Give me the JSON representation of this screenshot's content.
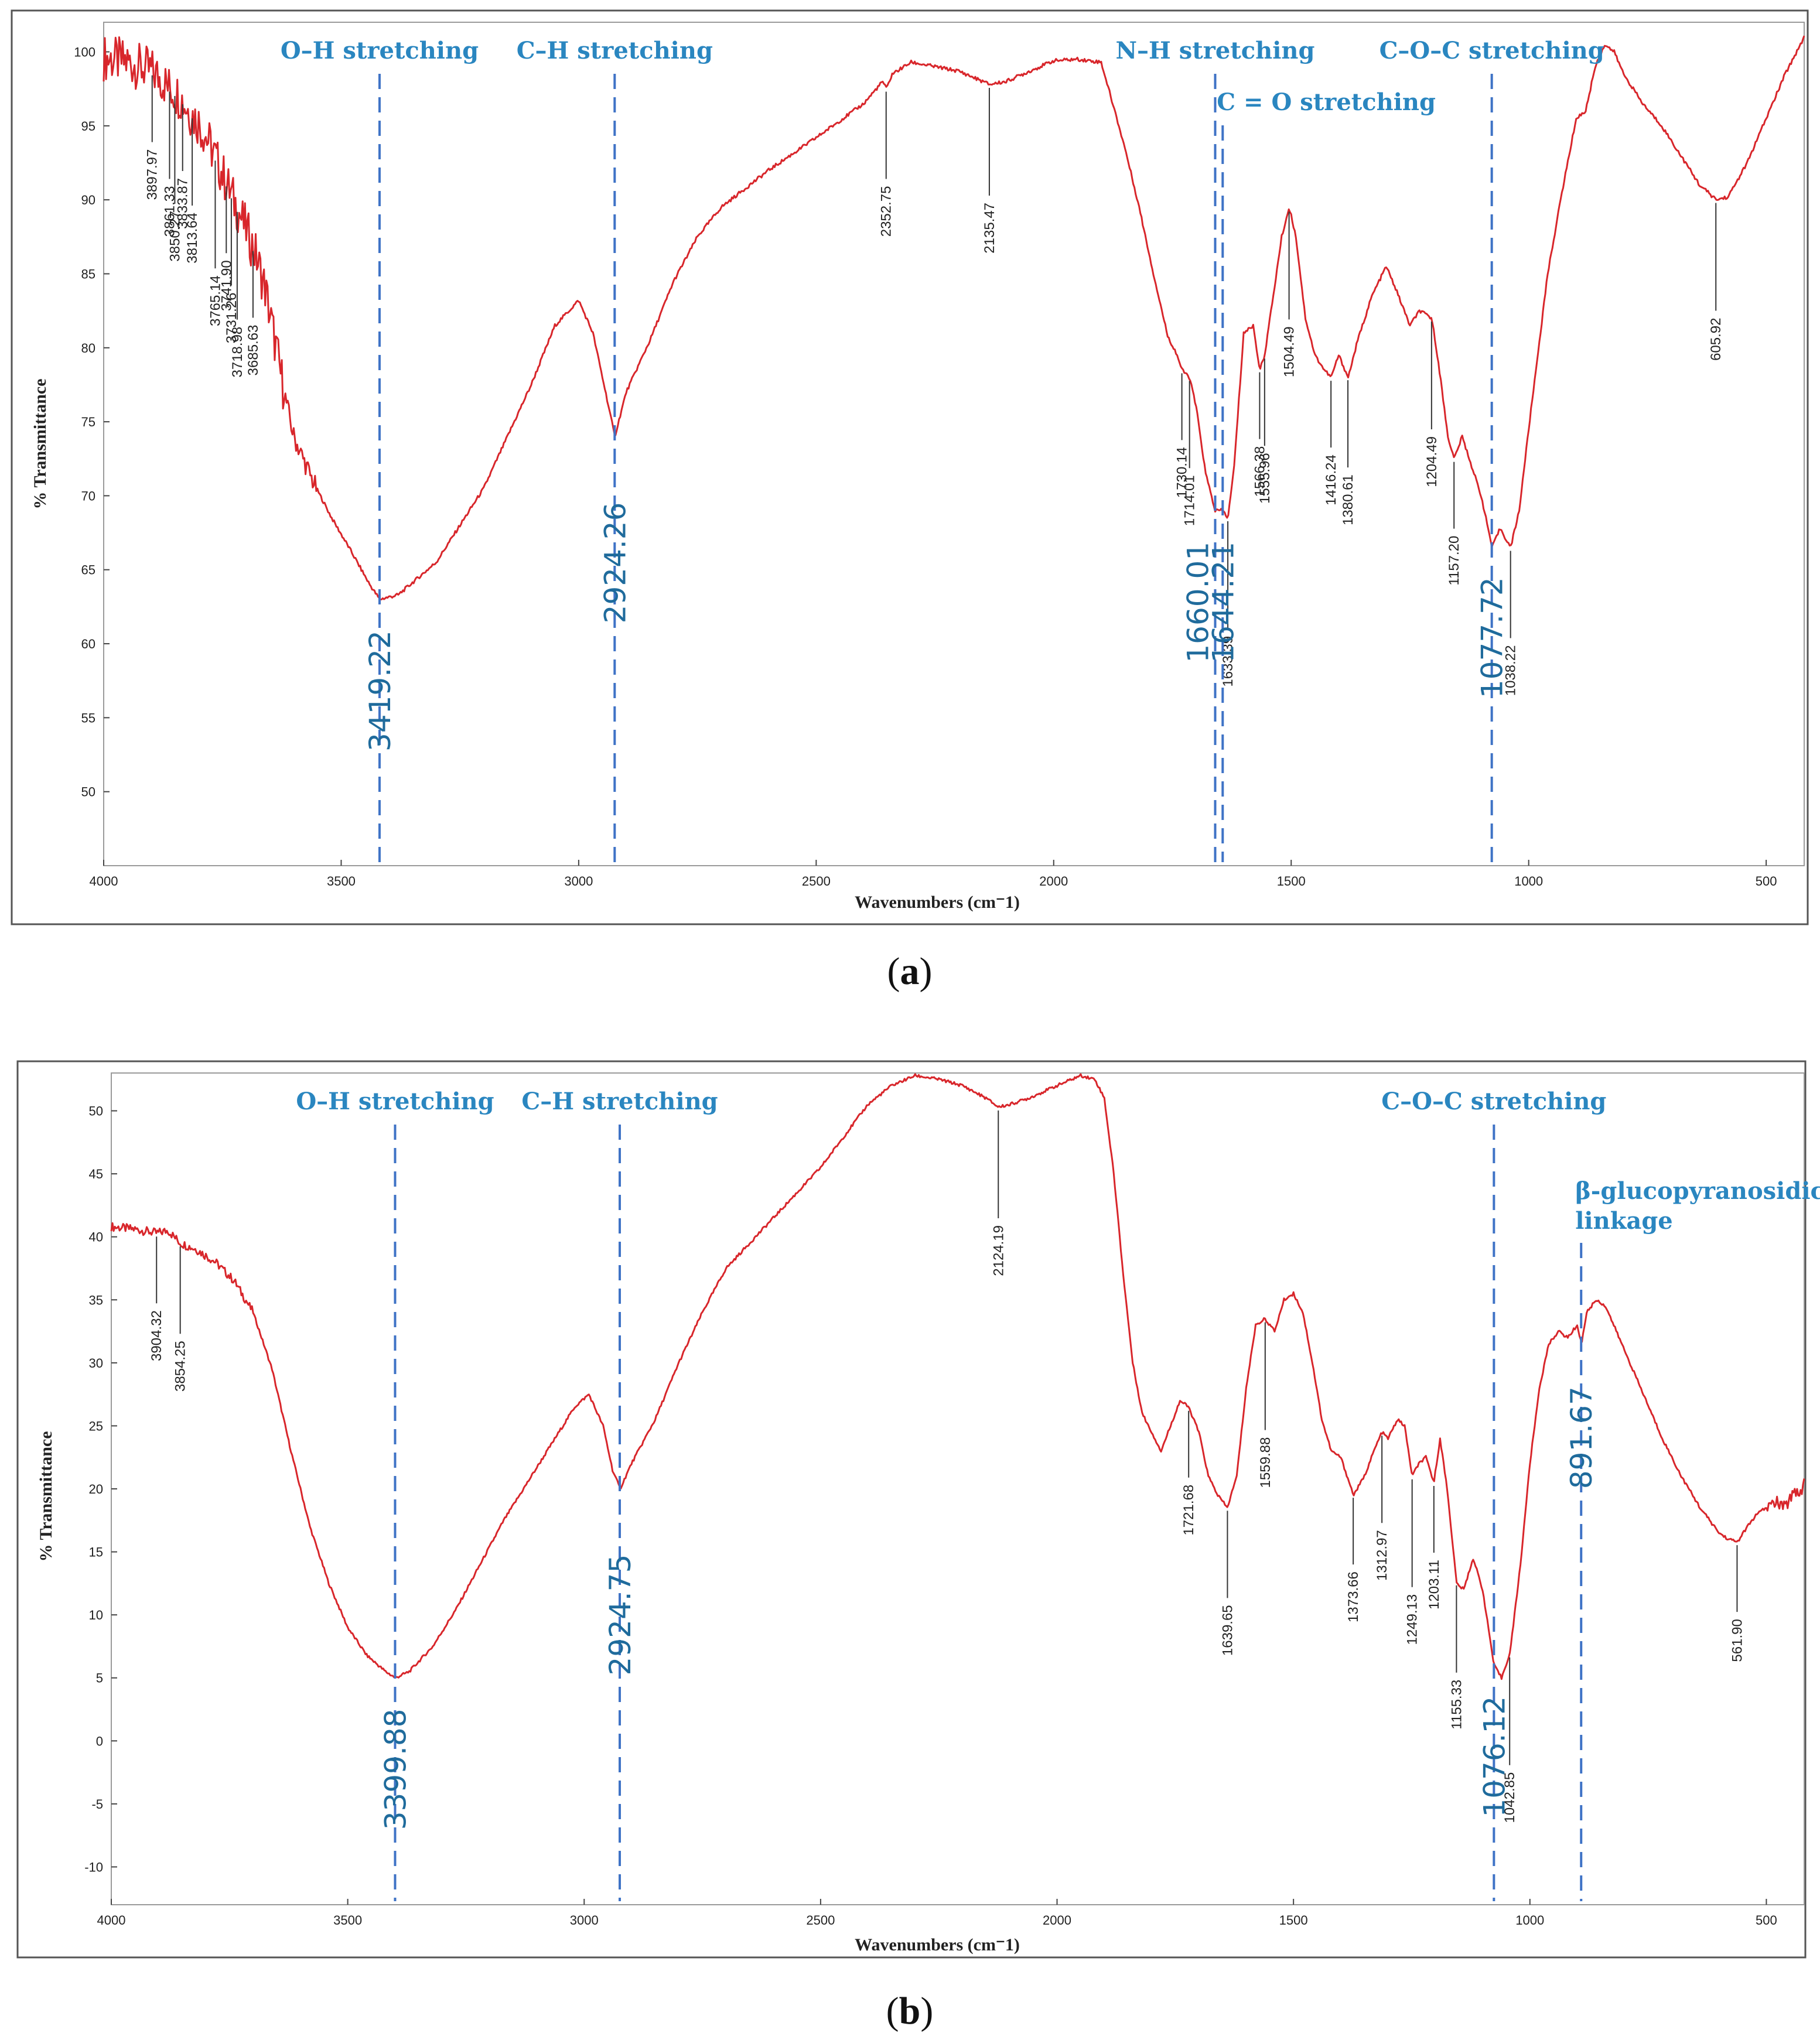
{
  "chart_data": [
    {
      "type": "line",
      "panel": "a",
      "caption": "a",
      "xlabel": "Wavenumbers (cm⁻1)",
      "ylabel": "% Transmittance",
      "xlim": [
        4000,
        420
      ],
      "ylim": [
        45,
        102
      ],
      "xticks": [
        4000,
        3500,
        3000,
        2500,
        2000,
        1500,
        1000,
        500
      ],
      "yticks": [
        50,
        55,
        60,
        65,
        70,
        75,
        80,
        85,
        90,
        95,
        100
      ],
      "series": [
        {
          "name": "spectrum-a",
          "color": "#d8262b",
          "x": [
            4000,
            3950,
            3900,
            3880,
            3860,
            3840,
            3820,
            3800,
            3780,
            3760,
            3740,
            3720,
            3700,
            3680,
            3660,
            3640,
            3620,
            3600,
            3560,
            3520,
            3480,
            3440,
            3419,
            3380,
            3300,
            3200,
            3100,
            3050,
            3000,
            2970,
            2940,
            2924,
            2900,
            2850,
            2800,
            2750,
            2700,
            2600,
            2500,
            2400,
            2360,
            2352,
            2340,
            2300,
            2200,
            2135,
            2100,
            2000,
            1950,
            1900,
            1880,
            1850,
            1820,
            1790,
            1760,
            1740,
            1730,
            1714,
            1700,
            1680,
            1660,
            1644,
            1633,
            1620,
            1600,
            1580,
            1566,
            1556,
            1540,
            1520,
            1504,
            1490,
            1470,
            1450,
            1430,
            1416,
            1400,
            1380,
            1360,
            1330,
            1300,
            1280,
            1250,
            1230,
            1204,
            1190,
            1170,
            1157,
            1140,
            1120,
            1100,
            1077,
            1060,
            1038,
            1020,
            1000,
            960,
            930,
            900,
            880,
            860,
            840,
            820,
            800,
            760,
            720,
            680,
            640,
            605,
            580,
            540,
            500,
            460,
            420
          ],
          "y": [
            99.6,
            99.3,
            98.7,
            98.2,
            97.5,
            97.0,
            96.0,
            95.2,
            94.0,
            92.5,
            91.0,
            89.5,
            88.0,
            86.3,
            84.0,
            80.5,
            77.0,
            74.0,
            71.0,
            68.5,
            66.3,
            64.0,
            63.0,
            63.3,
            65.5,
            70.5,
            77.5,
            81.5,
            83.2,
            81.0,
            76.5,
            74.0,
            77.0,
            80.5,
            84.5,
            87.5,
            89.5,
            92.0,
            94.2,
            96.5,
            98.0,
            97.5,
            98.5,
            99.3,
            98.7,
            97.8,
            98.0,
            99.4,
            99.5,
            99.3,
            97.0,
            93.5,
            89.5,
            85.0,
            80.8,
            79.5,
            78.5,
            78.0,
            76.0,
            71.5,
            69.0,
            69.0,
            68.5,
            72.0,
            81.0,
            81.5,
            78.5,
            79.5,
            83.0,
            87.5,
            89.5,
            87.5,
            82.0,
            79.5,
            78.5,
            78.0,
            79.5,
            78.0,
            80.5,
            83.5,
            85.5,
            84.0,
            81.5,
            82.5,
            82.0,
            79.0,
            74.0,
            72.5,
            74.0,
            72.0,
            70.0,
            66.5,
            67.8,
            66.5,
            69.0,
            74.5,
            85.0,
            90.5,
            95.5,
            96.0,
            99.0,
            100.5,
            100.0,
            98.5,
            96.5,
            95.0,
            93.0,
            91.0,
            90.0,
            90.2,
            92.5,
            95.5,
            98.5,
            101.0
          ]
        }
      ],
      "peak_labels": [
        {
          "label": "3897.97",
          "x": 3897.97
        },
        {
          "label": "3861.33",
          "x": 3861.33
        },
        {
          "label": "3850.27",
          "x": 3850.27
        },
        {
          "label": "3833.87",
          "x": 3833.87
        },
        {
          "label": "3813.64",
          "x": 3813.64
        },
        {
          "label": "3765.14",
          "x": 3765.14
        },
        {
          "label": "3741.90",
          "x": 3741.9
        },
        {
          "label": "3731.26",
          "x": 3731.26
        },
        {
          "label": "3718.98",
          "x": 3718.98
        },
        {
          "label": "3685.63",
          "x": 3685.63
        },
        {
          "label": "2352.75",
          "x": 2352.75
        },
        {
          "label": "2135.47",
          "x": 2135.47
        },
        {
          "label": "1730.14",
          "x": 1730.14
        },
        {
          "label": "1714.01",
          "x": 1714.01
        },
        {
          "label": "1633.39",
          "x": 1633.39
        },
        {
          "label": "1566.38",
          "x": 1566.38
        },
        {
          "label": "1555.96",
          "x": 1555.96
        },
        {
          "label": "1504.49",
          "x": 1504.49
        },
        {
          "label": "1416.24",
          "x": 1416.24
        },
        {
          "label": "1380.61",
          "x": 1380.61
        },
        {
          "label": "1204.49",
          "x": 1204.49
        },
        {
          "label": "1157.20",
          "x": 1157.2
        },
        {
          "label": "1038.22",
          "x": 1038.22
        },
        {
          "label": "605.92",
          "x": 605.92
        }
      ],
      "highlight_peaks": [
        {
          "label": "3419.22",
          "x": 3419.22
        },
        {
          "label": "2924.26",
          "x": 2924.26
        },
        {
          "label": "1660.01",
          "x": 1660.01
        },
        {
          "label": "1644.21",
          "x": 1644.21
        },
        {
          "label": "1077.72",
          "x": 1077.72
        }
      ],
      "bands": [
        {
          "label": "O–H stretching",
          "x": 3419.22
        },
        {
          "label": "C–H stretching",
          "x": 2924.26
        },
        {
          "label": "N–H stretching",
          "x": 1660.01
        },
        {
          "label": "C = O stretching",
          "x": 1644.21
        },
        {
          "label": "C–O–C stretching",
          "x": 1077.72
        }
      ]
    },
    {
      "type": "line",
      "panel": "b",
      "caption": "b",
      "xlabel": "Wavenumbers (cm⁻1)",
      "ylabel": "% Transmittance",
      "xlim": [
        4000,
        420
      ],
      "ylim": [
        -13,
        53
      ],
      "xticks": [
        4000,
        3500,
        3000,
        2500,
        2000,
        1500,
        1000,
        500
      ],
      "yticks": [
        -10,
        -5,
        0,
        5,
        10,
        15,
        20,
        25,
        30,
        35,
        40,
        45,
        50
      ],
      "series": [
        {
          "name": "spectrum-b",
          "color": "#d8262b",
          "x": [
            4000,
            3950,
            3904,
            3880,
            3854,
            3820,
            3780,
            3740,
            3700,
            3660,
            3620,
            3580,
            3540,
            3500,
            3460,
            3420,
            3399,
            3370,
            3320,
            3270,
            3220,
            3170,
            3120,
            3070,
            3020,
            2990,
            2960,
            2940,
            2924,
            2900,
            2850,
            2800,
            2750,
            2700,
            2650,
            2600,
            2550,
            2500,
            2450,
            2400,
            2350,
            2300,
            2250,
            2200,
            2150,
            2124,
            2100,
            2060,
            2000,
            1950,
            1920,
            1900,
            1880,
            1860,
            1840,
            1820,
            1800,
            1780,
            1760,
            1740,
            1722,
            1700,
            1680,
            1660,
            1640,
            1620,
            1600,
            1580,
            1560,
            1540,
            1520,
            1500,
            1480,
            1460,
            1440,
            1420,
            1400,
            1373,
            1350,
            1330,
            1313,
            1300,
            1280,
            1265,
            1249,
            1235,
            1220,
            1203,
            1190,
            1175,
            1155,
            1140,
            1120,
            1100,
            1076,
            1060,
            1042,
            1020,
            1000,
            980,
            960,
            940,
            920,
            900,
            891,
            880,
            860,
            840,
            800,
            760,
            720,
            680,
            640,
            600,
            580,
            561,
            540,
            520,
            500,
            480,
            460,
            440,
            430,
            420
          ],
          "y": [
            40.8,
            40.6,
            40.3,
            40.5,
            39.5,
            39.0,
            38.0,
            36.5,
            34.0,
            29.5,
            23.0,
            17.0,
            12.5,
            9.0,
            6.8,
            5.5,
            5.0,
            5.5,
            7.5,
            10.5,
            14.0,
            17.5,
            20.5,
            23.5,
            26.5,
            27.5,
            25.0,
            21.5,
            20.0,
            22.0,
            25.5,
            30.0,
            34.0,
            37.5,
            39.5,
            41.5,
            43.5,
            45.5,
            48.0,
            50.5,
            52.0,
            52.8,
            52.5,
            52.0,
            51.0,
            50.3,
            50.5,
            51.0,
            52.0,
            52.8,
            52.5,
            51.0,
            45.0,
            37.0,
            30.0,
            26.0,
            24.5,
            23.0,
            25.0,
            27.0,
            26.5,
            24.5,
            21.0,
            19.5,
            18.5,
            21.0,
            28.0,
            33.0,
            33.5,
            32.5,
            35.0,
            35.5,
            34.0,
            30.0,
            25.5,
            23.0,
            22.5,
            19.5,
            21.0,
            23.0,
            24.5,
            24.0,
            25.5,
            25.0,
            21.0,
            22.0,
            22.5,
            20.5,
            24.0,
            20.0,
            12.5,
            12.0,
            14.5,
            12.0,
            6.0,
            5.0,
            7.0,
            14.0,
            22.0,
            28.0,
            31.5,
            32.5,
            32.0,
            33.0,
            31.5,
            34.0,
            35.0,
            34.5,
            31.0,
            27.5,
            24.0,
            21.0,
            18.5,
            16.5,
            16.0,
            15.8,
            17.0,
            18.0,
            18.5,
            19.0,
            18.5,
            20.0,
            19.5,
            20.5
          ]
        }
      ],
      "peak_labels": [
        {
          "label": "3904.32",
          "x": 3904.32
        },
        {
          "label": "3854.25",
          "x": 3854.25
        },
        {
          "label": "2124.19",
          "x": 2124.19
        },
        {
          "label": "1721.68",
          "x": 1721.68
        },
        {
          "label": "1639.65",
          "x": 1639.65
        },
        {
          "label": "1559.88",
          "x": 1559.88
        },
        {
          "label": "1373.66",
          "x": 1373.66
        },
        {
          "label": "1312.97",
          "x": 1312.97
        },
        {
          "label": "1249.13",
          "x": 1249.13
        },
        {
          "label": "1203.11",
          "x": 1203.11
        },
        {
          "label": "1155.33",
          "x": 1155.33
        },
        {
          "label": "1042.85",
          "x": 1042.85
        },
        {
          "label": "561.90",
          "x": 561.9
        }
      ],
      "highlight_peaks": [
        {
          "label": "3399.88",
          "x": 3399.88
        },
        {
          "label": "2924.75",
          "x": 2924.75
        },
        {
          "label": "1076.12",
          "x": 1076.12
        },
        {
          "label": "891.67",
          "x": 891.67
        }
      ],
      "bands": [
        {
          "label": "O–H stretching",
          "x": 3399.88
        },
        {
          "label": "C–H stretching",
          "x": 2924.75
        },
        {
          "label": "C–O–C stretching",
          "x": 1076.12
        },
        {
          "label": "β-glucopyranosidic",
          "x": 891.67
        },
        {
          "label": "linkage",
          "x": 891.67
        }
      ]
    }
  ]
}
